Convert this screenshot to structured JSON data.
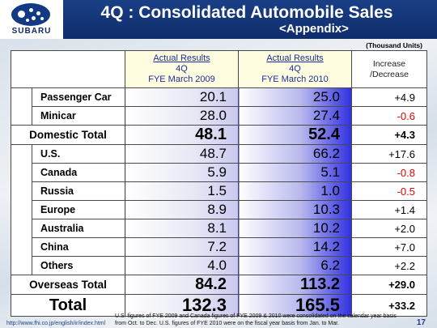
{
  "header": {
    "title": "4Q : Consolidated Automobile Sales",
    "subtitle": "<Appendix>",
    "logo_text": "SUBARU"
  },
  "units": "(Thousand Units)",
  "columns": {
    "fy2009": {
      "line1": "Actual Results",
      "line2": "4Q",
      "line3": "FYE March 2009"
    },
    "fy2010": {
      "line1": "Actual Results",
      "line2": "4Q",
      "line3": "FYE March 2010"
    },
    "change": {
      "line1": "Increase",
      "line2": "/Decrease"
    }
  },
  "domestic": [
    {
      "label": "Passenger Car",
      "fy2009": "20.1",
      "fy2010": "25.0",
      "change": "+4.9"
    },
    {
      "label": "Minicar",
      "fy2009": "28.0",
      "fy2010": "27.4",
      "change": "-0.6"
    }
  ],
  "domestic_total": {
    "label": "Domestic Total",
    "fy2009": "48.1",
    "fy2010": "52.4",
    "change": "+4.3"
  },
  "overseas": [
    {
      "label": "U.S.",
      "fy2009": "48.7",
      "fy2010": "66.2",
      "change": "+17.6"
    },
    {
      "label": "Canada",
      "fy2009": "5.9",
      "fy2010": "5.1",
      "change": "-0.8"
    },
    {
      "label": "Russia",
      "fy2009": "1.5",
      "fy2010": "1.0",
      "change": "-0.5"
    },
    {
      "label": "Europe",
      "fy2009": "8.9",
      "fy2010": "10.3",
      "change": "+1.4"
    },
    {
      "label": "Australia",
      "fy2009": "8.1",
      "fy2010": "10.2",
      "change": "+2.0"
    },
    {
      "label": "China",
      "fy2009": "7.2",
      "fy2010": "14.2",
      "change": "+7.0"
    },
    {
      "label": "Others",
      "fy2009": "4.0",
      "fy2010": "6.2",
      "change": "+2.2"
    }
  ],
  "overseas_total": {
    "label": "Overseas Total",
    "fy2009": "84.2",
    "fy2010": "113.2",
    "change": "+29.0"
  },
  "grand_total": {
    "label": "Total",
    "fy2009": "132.3",
    "fy2010": "165.5",
    "change": "+33.2"
  },
  "footer": {
    "url": "http://www.fhi.co.jp/english/ir/index.html",
    "note": "U.S. figures of FYE 2009 and Canada figures of FYE 2009 & 2010 were consolidated on the calendar year basis from Oct. to Dec. U.S. figures of FYE 2010 were on the fiscal year basis from Jan. to Mar.",
    "page": "17"
  }
}
